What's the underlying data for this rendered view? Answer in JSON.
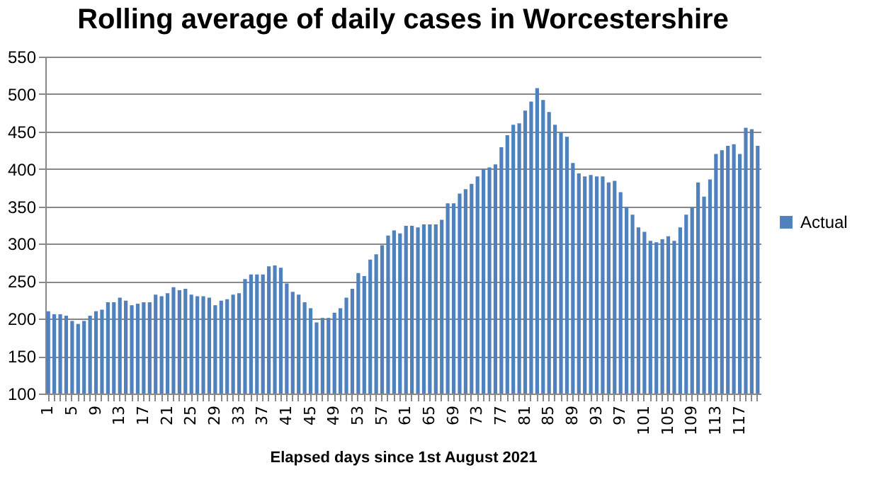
{
  "chart_data": {
    "type": "bar",
    "title": "Rolling average of daily cases in Worcestershire",
    "xlabel": "Elapsed days since 1st August 2021",
    "categories": [
      "1",
      null,
      null,
      null,
      "5",
      null,
      null,
      null,
      "9",
      null,
      null,
      null,
      "13",
      null,
      null,
      null,
      "17",
      null,
      null,
      null,
      "21",
      null,
      null,
      null,
      "25",
      null,
      null,
      null,
      "29",
      null,
      null,
      null,
      "33",
      null,
      null,
      null,
      "37",
      null,
      null,
      null,
      "41",
      null,
      null,
      null,
      "45",
      null,
      null,
      null,
      "49",
      null,
      null,
      null,
      "53",
      null,
      null,
      null,
      "57",
      null,
      null,
      null,
      "61",
      null,
      null,
      null,
      "65",
      null,
      null,
      null,
      "69",
      null,
      null,
      null,
      "73",
      null,
      null,
      null,
      "77",
      null,
      null,
      null,
      "81",
      null,
      null,
      null,
      "85",
      null,
      null,
      null,
      "89",
      null,
      null,
      null,
      "93",
      null,
      null,
      null,
      "97",
      null,
      null,
      null,
      "101",
      null,
      null,
      null,
      "105",
      null,
      null,
      null,
      "109",
      null,
      null,
      null,
      "113",
      null,
      null,
      null,
      "117",
      null,
      null,
      null
    ],
    "series": [
      {
        "name": "Actual",
        "color": "#4f81bd",
        "values": [
          210,
          206,
          206,
          204,
          197,
          193,
          197,
          204,
          210,
          212,
          222,
          222,
          228,
          224,
          218,
          220,
          222,
          222,
          232,
          230,
          234,
          242,
          238,
          240,
          232,
          230,
          230,
          228,
          218,
          224,
          226,
          232,
          234,
          253,
          259,
          259,
          259,
          270,
          271,
          268,
          247,
          236,
          232,
          222,
          214,
          195,
          201,
          201,
          208,
          214,
          228,
          240,
          261,
          257,
          279,
          286,
          298,
          311,
          318,
          314,
          324,
          324,
          322,
          326,
          326,
          326,
          332,
          354,
          354,
          367,
          373,
          380,
          390,
          400,
          402,
          406,
          429,
          445,
          459,
          461,
          478,
          490,
          508,
          492,
          476,
          459,
          449,
          443,
          408,
          394,
          390,
          392,
          390,
          390,
          382,
          384,
          369,
          349,
          339,
          322,
          316,
          304,
          302,
          306,
          310,
          304,
          322,
          339,
          349,
          382,
          363,
          386,
          420,
          425,
          431,
          433,
          420,
          455,
          453,
          431
        ]
      }
    ],
    "ylim": [
      100,
      550
    ],
    "yticks": [
      100,
      150,
      200,
      250,
      300,
      350,
      400,
      450,
      500,
      550
    ],
    "grid": "y",
    "legend": "right"
  }
}
